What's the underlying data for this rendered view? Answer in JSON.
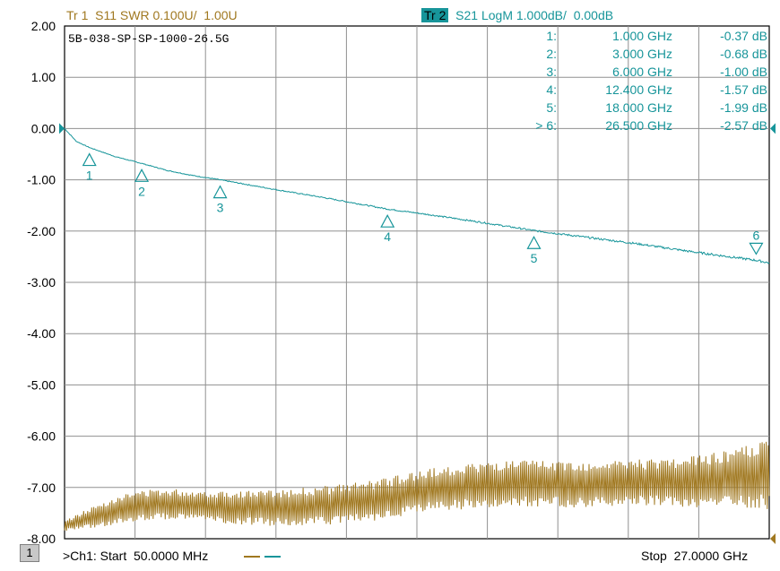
{
  "header": {
    "trace1": {
      "name": "Tr 1",
      "label": "S11 SWR 0.100U/  1.00U"
    },
    "trace2": {
      "name": "Tr 2",
      "label": "S21 LogM 1.000dB/  0.00dB"
    }
  },
  "footer": {
    "channel_number": "1",
    "start_text": ">Ch1: Start  50.0000 MHz",
    "stop_text": "Stop  27.0000 GHz"
  },
  "colors": {
    "trace1": "#a07820",
    "trace2": "#17959a",
    "grid": "#909090"
  },
  "chart_data": {
    "type": "line",
    "title": "5B-038-SP-SP-1000-26.5G",
    "xlabel": "",
    "ylabel": "",
    "xlim": [
      0.05,
      27.0
    ],
    "x_unit": "GHz",
    "ylim": [
      -8.0,
      2.0
    ],
    "yticks": [
      "2.00",
      "1.00",
      "0.00",
      "-1.00",
      "-2.00",
      "-3.00",
      "-4.00",
      "-5.00",
      "-6.00",
      "-7.00",
      "-8.00"
    ],
    "grid": true,
    "markers": [
      {
        "id": "1",
        "freq_ghz": 1.0,
        "freq": "1.000 GHz",
        "value_db": -0.37,
        "value": "-0.37 dB",
        "prefix": ""
      },
      {
        "id": "2",
        "freq_ghz": 3.0,
        "freq": "3.000 GHz",
        "value_db": -0.68,
        "value": "-0.68 dB",
        "prefix": ""
      },
      {
        "id": "3",
        "freq_ghz": 6.0,
        "freq": "6.000 GHz",
        "value_db": -1.0,
        "value": "-1.00 dB",
        "prefix": ""
      },
      {
        "id": "4",
        "freq_ghz": 12.4,
        "freq": "12.400 GHz",
        "value_db": -1.57,
        "value": "-1.57 dB",
        "prefix": ""
      },
      {
        "id": "5",
        "freq_ghz": 18.0,
        "freq": "18.000 GHz",
        "value_db": -1.99,
        "value": "-1.99 dB",
        "prefix": ""
      },
      {
        "id": "6",
        "freq_ghz": 26.5,
        "freq": "26.500 GHz",
        "value_db": -2.57,
        "value": "-2.57 dB",
        "prefix": ">"
      }
    ],
    "series": [
      {
        "trace": "S21",
        "x": [
          0.05,
          0.5,
          1,
          2,
          3,
          4,
          5,
          6,
          8,
          10,
          12.4,
          14,
          16,
          18,
          20,
          22,
          24,
          26.5,
          27
        ],
        "values": [
          0,
          -0.25,
          -0.37,
          -0.55,
          -0.68,
          -0.82,
          -0.92,
          -1.0,
          -1.18,
          -1.35,
          -1.57,
          -1.68,
          -1.83,
          -1.99,
          -2.12,
          -2.25,
          -2.4,
          -2.57,
          -2.62
        ]
      },
      {
        "trace": "S11",
        "x": [
          0.05,
          1,
          2,
          3,
          4,
          5,
          6,
          8,
          10,
          12,
          14,
          16,
          18,
          20,
          22,
          24,
          26,
          27
        ],
        "center": [
          -7.75,
          -7.6,
          -7.45,
          -7.35,
          -7.32,
          -7.35,
          -7.38,
          -7.4,
          -7.35,
          -7.25,
          -7.05,
          -6.95,
          -6.92,
          -6.95,
          -6.9,
          -6.9,
          -6.8,
          -6.75
        ],
        "amplitude": [
          0.1,
          0.2,
          0.28,
          0.3,
          0.3,
          0.3,
          0.32,
          0.35,
          0.38,
          0.4,
          0.42,
          0.45,
          0.45,
          0.45,
          0.45,
          0.5,
          0.6,
          0.7
        ]
      }
    ]
  }
}
